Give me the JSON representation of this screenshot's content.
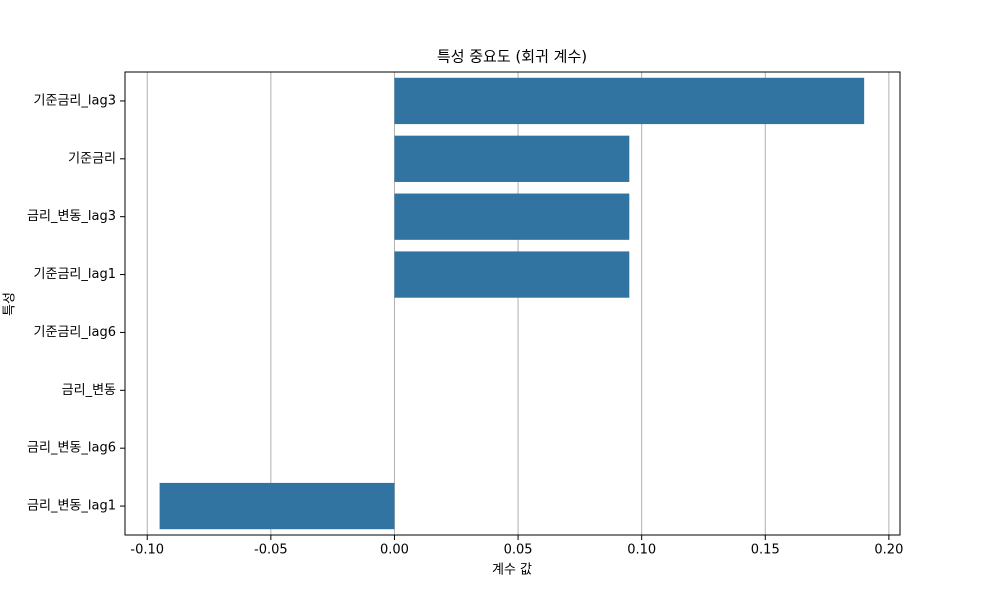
{
  "chart_data": {
    "type": "barh",
    "title": "특성 중요도 (회귀 계수)",
    "x_label": "계수 값",
    "y_label": "특성",
    "categories": [
      "기준금리_lag3",
      "기준금리",
      "금리_변동_lag3",
      "기준금리_lag1",
      "기준금리_lag6",
      "금리_변동",
      "금리_변동_lag6",
      "금리_변동_lag1"
    ],
    "values": [
      0.19,
      0.095,
      0.095,
      0.095,
      0,
      0,
      0,
      -0.095
    ],
    "color": "#3274a1",
    "xlim": [
      -0.109,
      0.2045
    ],
    "xticks": [
      {
        "value": -0.1,
        "label": "-0.10"
      },
      -0.05,
      {
        "value": 0,
        "label": "0.00"
      },
      0.05,
      {
        "value": 0.1,
        "label": "0.10"
      },
      0.15,
      {
        "value": 0.2,
        "label": "0.20"
      }
    ],
    "grid": true
  }
}
